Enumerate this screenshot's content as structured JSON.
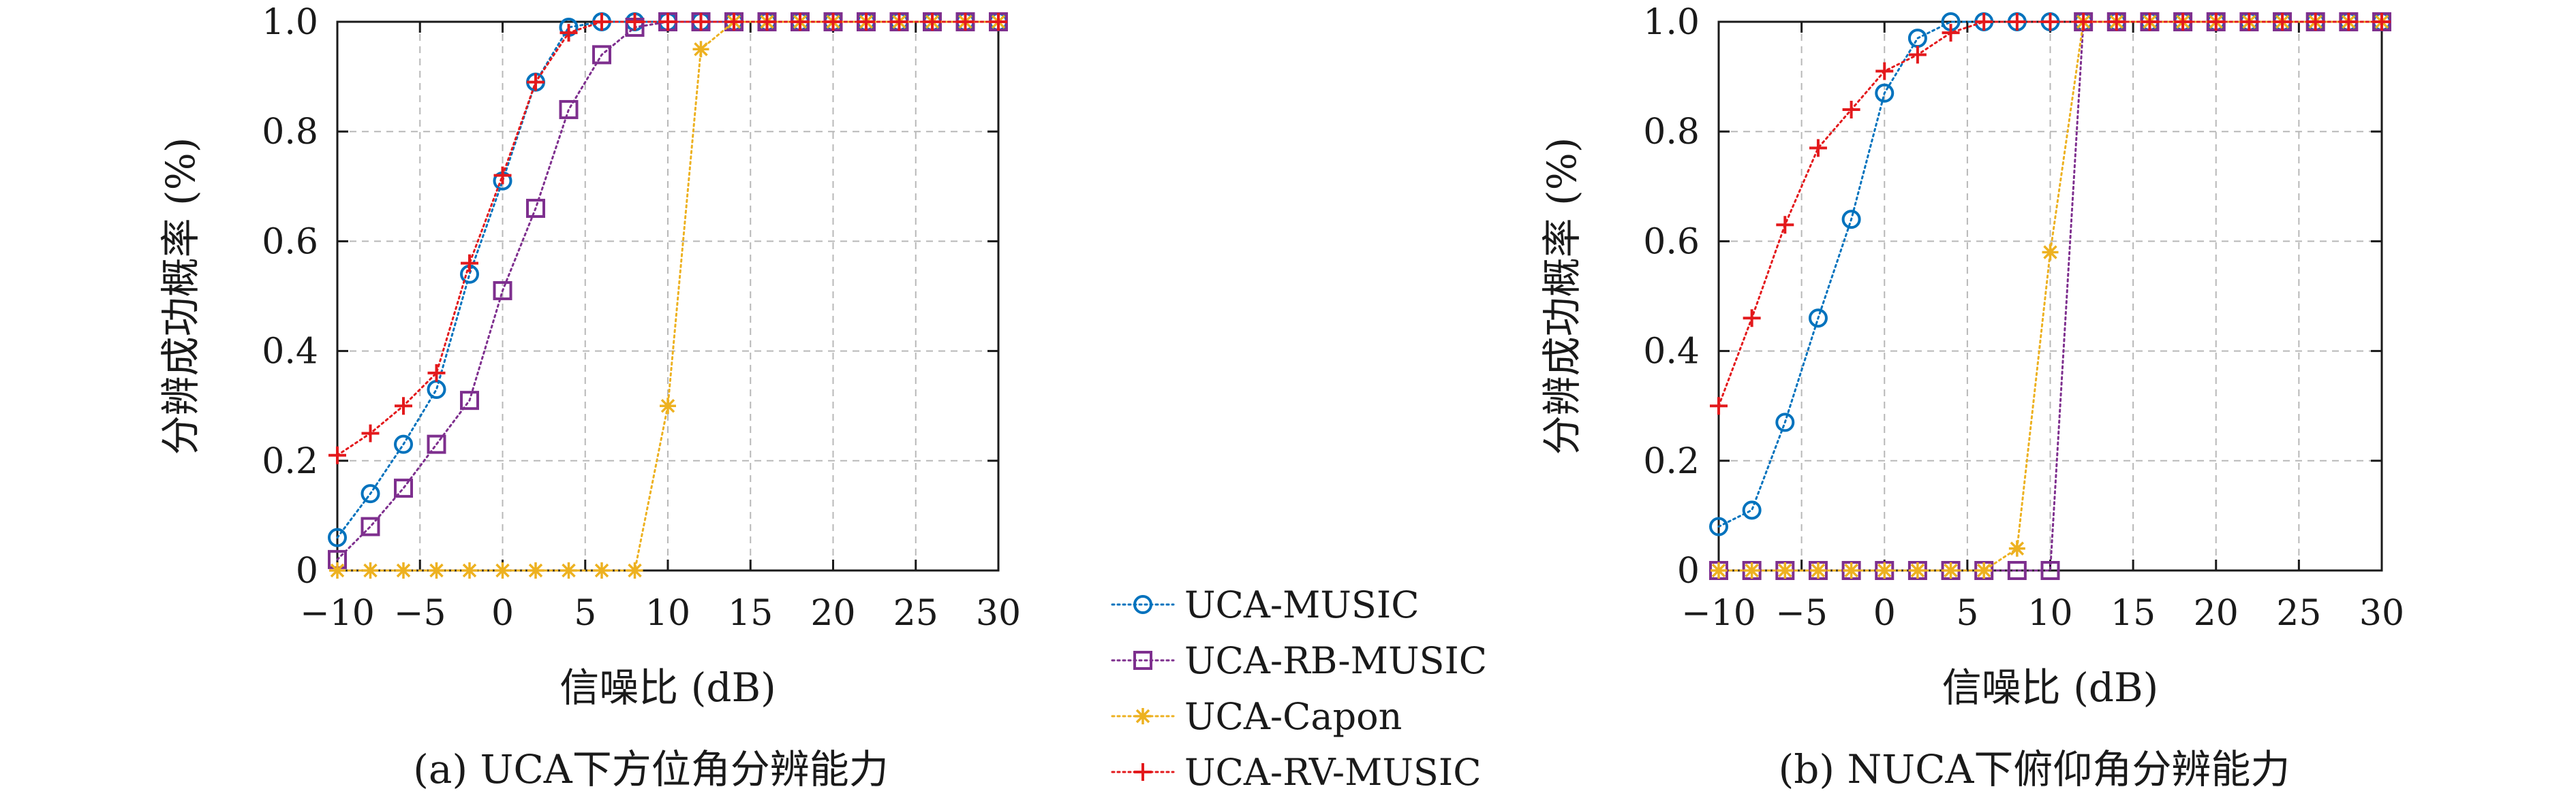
{
  "chart_data": [
    {
      "type": "line",
      "caption": "(a) UCA下方位角分辨能力",
      "xlabel": "信噪比 (dB)",
      "ylabel": "分辨成功概率 (%)",
      "xlim": [
        -10,
        30
      ],
      "ylim": [
        0,
        1
      ],
      "xticks": [
        -10,
        -5,
        0,
        5,
        10,
        15,
        20,
        25,
        30
      ],
      "xtick_labels": [
        "−10",
        "−5",
        "0",
        "5",
        "10",
        "15",
        "20",
        "25",
        "30"
      ],
      "yticks": [
        0,
        0.2,
        0.4,
        0.6,
        0.8,
        1.0
      ],
      "ytick_labels": [
        "0",
        "0.2",
        "0.4",
        "0.6",
        "0.8",
        "1.0"
      ],
      "grid": true,
      "x": [
        -10,
        -8,
        -6,
        -4,
        -2,
        0,
        2,
        4,
        6,
        8,
        10,
        12,
        14,
        16,
        18,
        20,
        22,
        24,
        26,
        28,
        30
      ],
      "series": [
        {
          "name": "UCA-MUSIC",
          "color": "#0072BD",
          "marker": "circle",
          "values": [
            0.06,
            0.14,
            0.23,
            0.33,
            0.54,
            0.71,
            0.89,
            0.99,
            1,
            1,
            1,
            1,
            1,
            1,
            1,
            1,
            1,
            1,
            1,
            1,
            1
          ]
        },
        {
          "name": "UCA-RB-MUSIC",
          "color": "#7E2F8E",
          "marker": "square",
          "values": [
            0.02,
            0.08,
            0.15,
            0.23,
            0.31,
            0.51,
            0.66,
            0.84,
            0.94,
            0.99,
            1,
            1,
            1,
            1,
            1,
            1,
            1,
            1,
            1,
            1,
            1
          ]
        },
        {
          "name": "UCA-Capon",
          "color": "#EDB120",
          "marker": "asterisk",
          "values": [
            0,
            0,
            0,
            0,
            0,
            0,
            0,
            0,
            0,
            0,
            0.3,
            0.95,
            1,
            1,
            1,
            1,
            1,
            1,
            1,
            1,
            1
          ]
        },
        {
          "name": "UCA-RV-MUSIC",
          "color": "#E3191C",
          "marker": "plus",
          "values": [
            0.21,
            0.25,
            0.3,
            0.36,
            0.56,
            0.72,
            0.89,
            0.98,
            1,
            1,
            1,
            1,
            1,
            1,
            1,
            1,
            1,
            1,
            1,
            1,
            1
          ]
        }
      ]
    },
    {
      "type": "line",
      "caption": "(b) NUCA下俯仰角分辨能力",
      "xlabel": "信噪比 (dB)",
      "ylabel": "分辨成功概率 (%)",
      "xlim": [
        -10,
        30
      ],
      "ylim": [
        0,
        1
      ],
      "xticks": [
        -10,
        -5,
        0,
        5,
        10,
        15,
        20,
        25,
        30
      ],
      "xtick_labels": [
        "−10",
        "−5",
        "0",
        "5",
        "10",
        "15",
        "20",
        "25",
        "30"
      ],
      "yticks": [
        0,
        0.2,
        0.4,
        0.6,
        0.8,
        1.0
      ],
      "ytick_labels": [
        "0",
        "0.2",
        "0.4",
        "0.6",
        "0.8",
        "1.0"
      ],
      "grid": true,
      "x": [
        -10,
        -8,
        -6,
        -4,
        -2,
        0,
        2,
        4,
        6,
        8,
        10,
        12,
        14,
        16,
        18,
        20,
        22,
        24,
        26,
        28,
        30
      ],
      "series": [
        {
          "name": "UCA-MUSIC",
          "color": "#0072BD",
          "marker": "circle",
          "values": [
            0.08,
            0.11,
            0.27,
            0.46,
            0.64,
            0.87,
            0.97,
            1,
            1,
            1,
            1,
            1,
            1,
            1,
            1,
            1,
            1,
            1,
            1,
            1,
            1
          ]
        },
        {
          "name": "UCA-RB-MUSIC",
          "color": "#7E2F8E",
          "marker": "square",
          "values": [
            0,
            0,
            0,
            0,
            0,
            0,
            0,
            0,
            0,
            0,
            0,
            1,
            1,
            1,
            1,
            1,
            1,
            1,
            1,
            1,
            1
          ]
        },
        {
          "name": "UCA-Capon",
          "color": "#EDB120",
          "marker": "asterisk",
          "values": [
            0,
            0,
            0,
            0,
            0,
            0,
            0,
            0,
            0,
            0.04,
            0.58,
            1,
            1,
            1,
            1,
            1,
            1,
            1,
            1,
            1,
            1
          ]
        },
        {
          "name": "UCA-RV-MUSIC",
          "color": "#E3191C",
          "marker": "plus",
          "values": [
            0.3,
            0.46,
            0.63,
            0.77,
            0.84,
            0.91,
            0.94,
            0.98,
            1,
            1,
            1,
            1,
            1,
            1,
            1,
            1,
            1,
            1,
            1,
            1,
            1
          ]
        }
      ]
    }
  ],
  "legend": {
    "placement": "center-between-panels",
    "entries": [
      "UCA-MUSIC",
      "UCA-RB-MUSIC",
      "UCA-Capon",
      "UCA-RV-MUSIC"
    ]
  }
}
